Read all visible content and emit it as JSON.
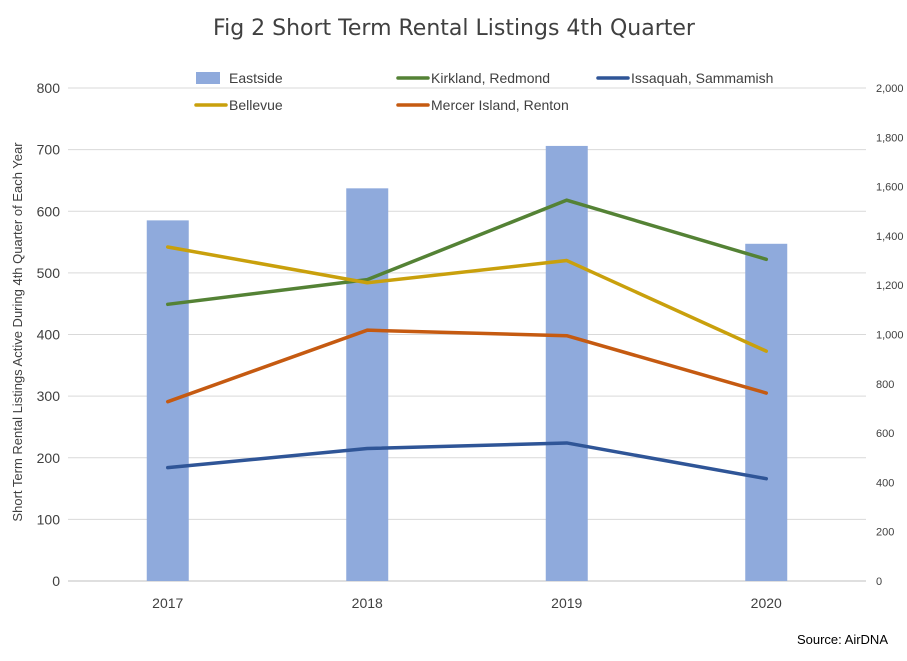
{
  "chart_data": {
    "type": "bar",
    "title": "Fig 2 Short Term Rental Listings 4th Quarter",
    "ylabel": "Short Term Rental Listings Active During 4th Quarter of Each Year",
    "source": "Source: AirDNA",
    "categories": [
      "2017",
      "2018",
      "2019",
      "2020"
    ],
    "ylim": [
      0,
      800
    ],
    "y2lim": [
      0,
      2000
    ],
    "yticks": [
      "0",
      "100",
      "200",
      "300",
      "400",
      "500",
      "600",
      "700",
      "800"
    ],
    "y2ticks": [
      "0",
      "200",
      "400",
      "600",
      "800",
      "1,000",
      "1,200",
      "1,400",
      "1,600",
      "1,800",
      "2,000"
    ],
    "grid": true,
    "legend_position": "top",
    "series": [
      {
        "name": "Eastside",
        "kind": "bar",
        "axis": "right",
        "color": "#8faadc",
        "values": [
          1463,
          1593,
          1765,
          1368
        ]
      },
      {
        "name": "Kirkland, Redmond",
        "kind": "line",
        "axis": "left",
        "color": "#548235",
        "values": [
          449,
          489,
          618,
          522
        ]
      },
      {
        "name": "Issaquah, Sammamish",
        "kind": "line",
        "axis": "left",
        "color": "#2f5597",
        "values": [
          184,
          215,
          224,
          166
        ]
      },
      {
        "name": "Bellevue",
        "kind": "line",
        "axis": "left",
        "color": "#c9a00c",
        "values": [
          542,
          484,
          520,
          373
        ]
      },
      {
        "name": "Mercer Island, Renton",
        "kind": "line",
        "axis": "left",
        "color": "#c55a11",
        "values": [
          291,
          407,
          398,
          305
        ]
      }
    ]
  }
}
